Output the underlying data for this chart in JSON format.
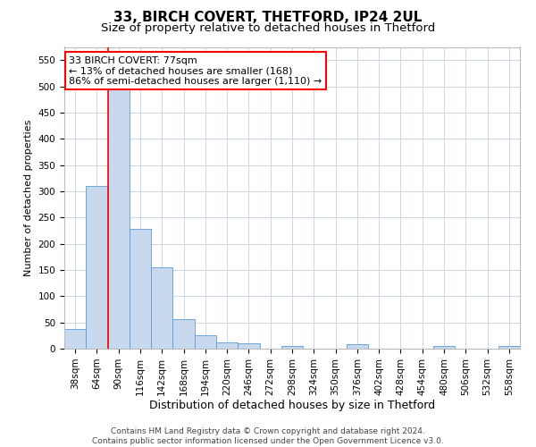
{
  "title": "33, BIRCH COVERT, THETFORD, IP24 2UL",
  "subtitle": "Size of property relative to detached houses in Thetford",
  "xlabel": "Distribution of detached houses by size in Thetford",
  "ylabel": "Number of detached properties",
  "footer_line1": "Contains HM Land Registry data © Crown copyright and database right 2024.",
  "footer_line2": "Contains public sector information licensed under the Open Government Licence v3.0.",
  "annotation_line1": "33 BIRCH COVERT: 77sqm",
  "annotation_line2": "← 13% of detached houses are smaller (168)",
  "annotation_line3": "86% of semi-detached houses are larger (1,110) →",
  "categories": [
    "38sqm",
    "64sqm",
    "90sqm",
    "116sqm",
    "142sqm",
    "168sqm",
    "194sqm",
    "220sqm",
    "246sqm",
    "272sqm",
    "298sqm",
    "324sqm",
    "350sqm",
    "376sqm",
    "402sqm",
    "428sqm",
    "454sqm",
    "480sqm",
    "506sqm",
    "532sqm",
    "558sqm"
  ],
  "values": [
    37,
    310,
    510,
    228,
    155,
    57,
    25,
    12,
    10,
    0,
    5,
    0,
    0,
    8,
    0,
    0,
    0,
    5,
    0,
    0,
    5
  ],
  "bar_color": "#c8d9ed",
  "bar_edge_color": "#5b9bd5",
  "red_line_x": 1.5,
  "ylim": [
    0,
    575
  ],
  "yticks": [
    0,
    50,
    100,
    150,
    200,
    250,
    300,
    350,
    400,
    450,
    500,
    550
  ],
  "background_color": "#ffffff",
  "grid_color": "#ccd6e8",
  "title_fontsize": 11,
  "subtitle_fontsize": 9.5,
  "ylabel_fontsize": 8,
  "xlabel_fontsize": 9,
  "tick_fontsize": 7.5,
  "annotation_fontsize": 8,
  "footer_fontsize": 6.5
}
